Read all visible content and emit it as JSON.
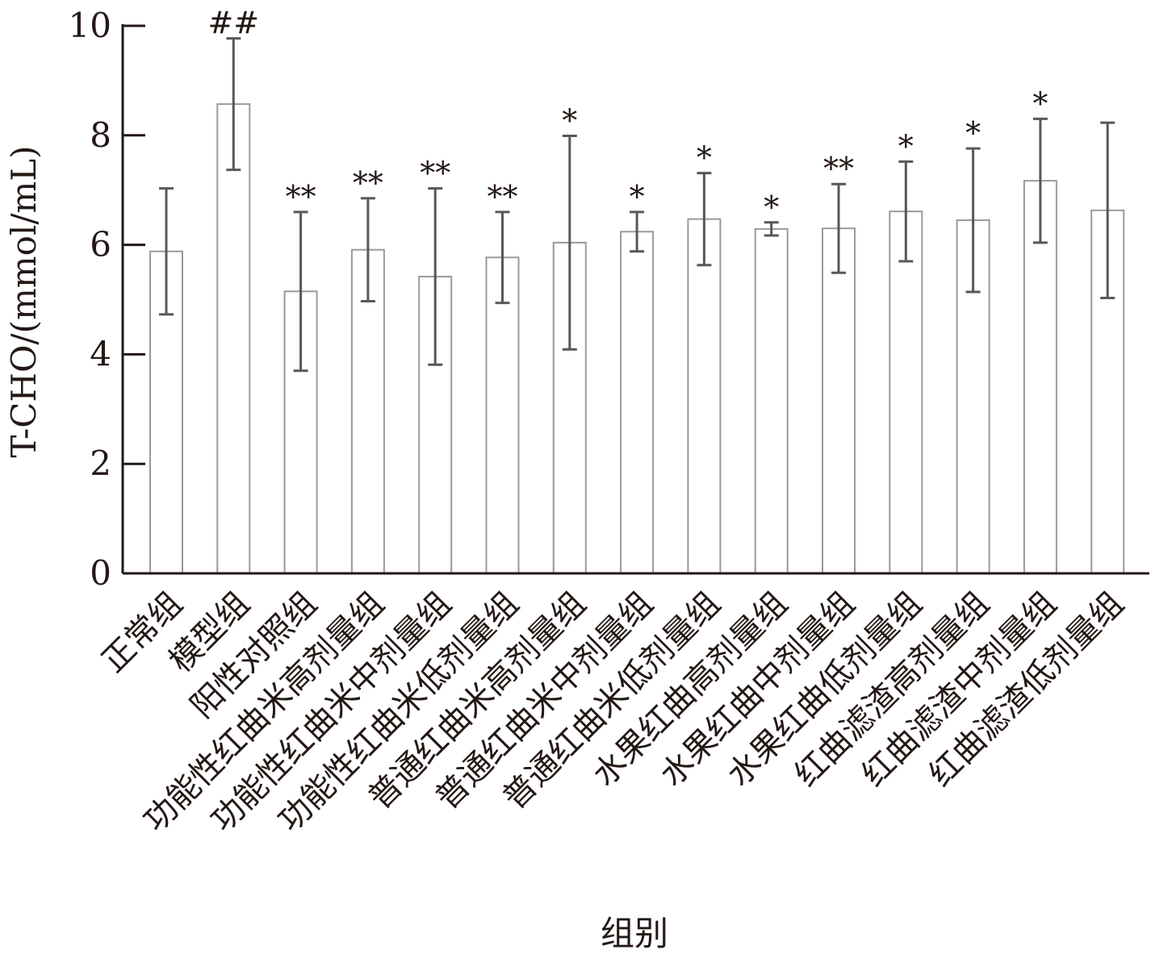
{
  "chart_data": {
    "type": "bar",
    "ylabel": "T-CHO/(mmol/mL)",
    "xlabel": "组别",
    "ylim": [
      0,
      10
    ],
    "yticks": [
      "0",
      "2",
      "4",
      "6",
      "8",
      "10"
    ],
    "grid": false,
    "categories": [
      "正常组",
      "模型组",
      "阳性对照组",
      "功能性红曲米高剂量组",
      "功能性红曲米中剂量组",
      "功能性红曲米低剂量组",
      "普通红曲米高剂量组",
      "普通红曲米中剂量组",
      "普通红曲米低剂量组",
      "水果红曲高剂量组",
      "水果红曲中剂量组",
      "水果红曲低剂量组",
      "红曲滤渣高剂量组",
      "红曲滤渣中剂量组",
      "红曲滤渣低剂量组"
    ],
    "values": [
      5.88,
      8.57,
      5.15,
      5.91,
      5.42,
      5.77,
      6.04,
      6.24,
      6.47,
      6.29,
      6.3,
      6.61,
      6.45,
      7.17,
      6.63
    ],
    "errors": [
      1.15,
      1.2,
      1.45,
      0.94,
      1.61,
      0.83,
      1.95,
      0.36,
      0.84,
      0.12,
      0.81,
      0.91,
      1.31,
      1.13,
      1.6
    ],
    "annotations": [
      "",
      "##",
      "**",
      "**",
      "**",
      "**",
      "*",
      "*",
      "*",
      "*",
      "**",
      "*",
      "*",
      "*",
      ""
    ]
  },
  "colors": {
    "axis": "#231815",
    "bar_edge": "#9a9a9a",
    "error_bar": "#595757",
    "bar_fill": "#ffffff"
  }
}
